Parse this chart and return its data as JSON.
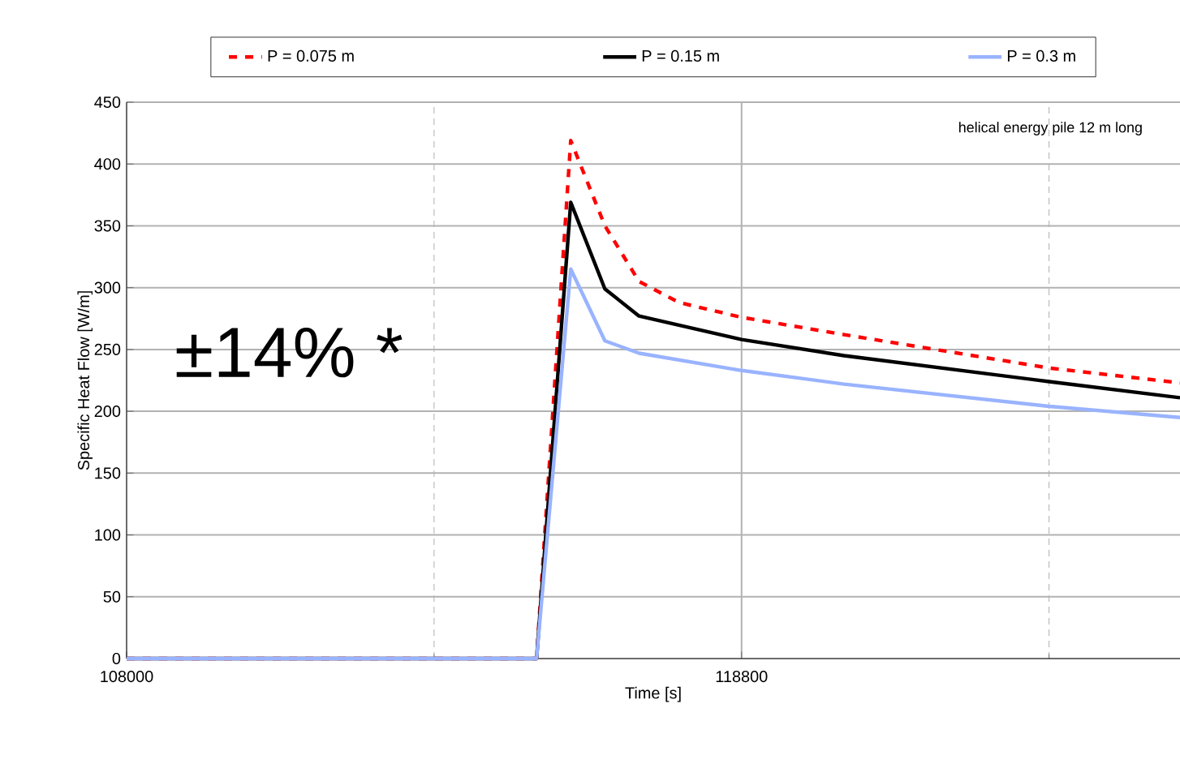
{
  "chart_data": {
    "type": "line",
    "xlabel": "Time [s]",
    "ylabel": "Specific Heat Flow [W/m]",
    "xlim": [
      108000,
      126500
    ],
    "ylim": [
      0,
      450
    ],
    "xticks": [
      108000,
      {
        "value": 113400,
        "label": null
      },
      118800,
      {
        "value": 124200,
        "label": null
      }
    ],
    "yticks": [
      0,
      50,
      100,
      150,
      200,
      250,
      300,
      350,
      400,
      450
    ],
    "grid": true,
    "legend": "top",
    "annotations": [
      "helical energy pile 12 m long",
      "±14% *"
    ],
    "series": [
      {
        "name": "P = 0.075 m",
        "color": "#ff0000",
        "line_style": "dashed",
        "x": [
          108000,
          115200,
          115800,
          116400,
          117000,
          117700,
          118800,
          120600,
          124200,
          126500
        ],
        "values": [
          0,
          0,
          419,
          350,
          305,
          288,
          276,
          262,
          235,
          223
        ]
      },
      {
        "name": "P = 0.15 m",
        "color": "#000000",
        "line_style": "solid",
        "x": [
          108000,
          115200,
          115800,
          116400,
          117000,
          118800,
          120600,
          124200,
          126500
        ],
        "values": [
          0,
          0,
          369,
          299,
          277,
          258,
          245,
          224,
          211
        ]
      },
      {
        "name": "P = 0.3 m",
        "color": "#99b3ff",
        "line_style": "solid",
        "x": [
          108000,
          115200,
          115800,
          116400,
          117000,
          118800,
          120600,
          124200,
          126500
        ],
        "values": [
          0,
          0,
          315,
          257,
          247,
          233,
          222,
          204,
          195
        ]
      }
    ]
  }
}
